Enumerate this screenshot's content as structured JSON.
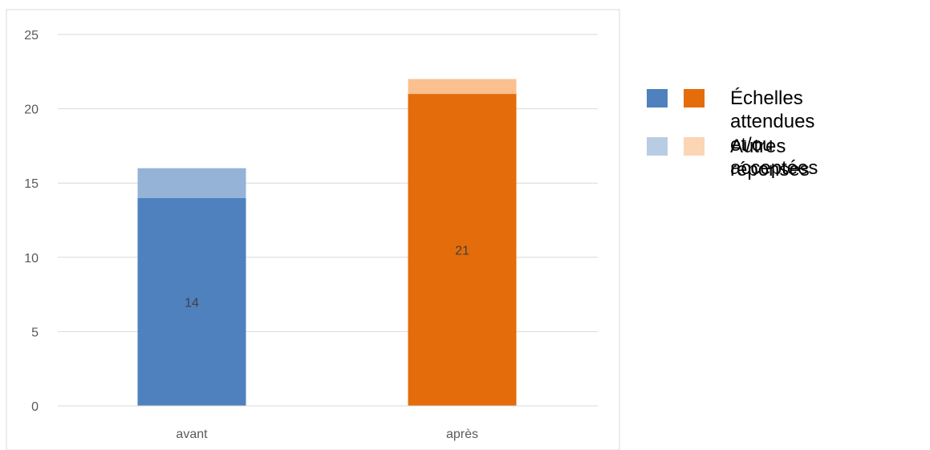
{
  "chart_data": {
    "type": "bar",
    "stacked": true,
    "categories": [
      "avant",
      "après"
    ],
    "series": [
      {
        "name": "Échelles attendues et/ou acceptées",
        "values": [
          14,
          21
        ],
        "colors": [
          "#4e81bd",
          "#e46c0a"
        ],
        "data_labels": [
          "14",
          "21"
        ]
      },
      {
        "name": "Autres réponses",
        "values": [
          2,
          1
        ],
        "colors": [
          "#95b3d7",
          "#fac090"
        ]
      }
    ],
    "legend_swatch_colors": {
      "first": [
        "#4e81bd",
        "#e46c0a"
      ],
      "second": [
        "#b8cce4",
        "#fcd5b5"
      ]
    },
    "ylim": [
      0,
      25
    ],
    "yticks": [
      "0",
      "5",
      "10",
      "15",
      "20",
      "25"
    ],
    "grid": true,
    "legend_position": "right",
    "xlabel": "",
    "ylabel": "",
    "title": ""
  },
  "legend": {
    "item1_label": "Échelles attendues\net/ou acceptées",
    "item2_label": "Autres réponses"
  }
}
